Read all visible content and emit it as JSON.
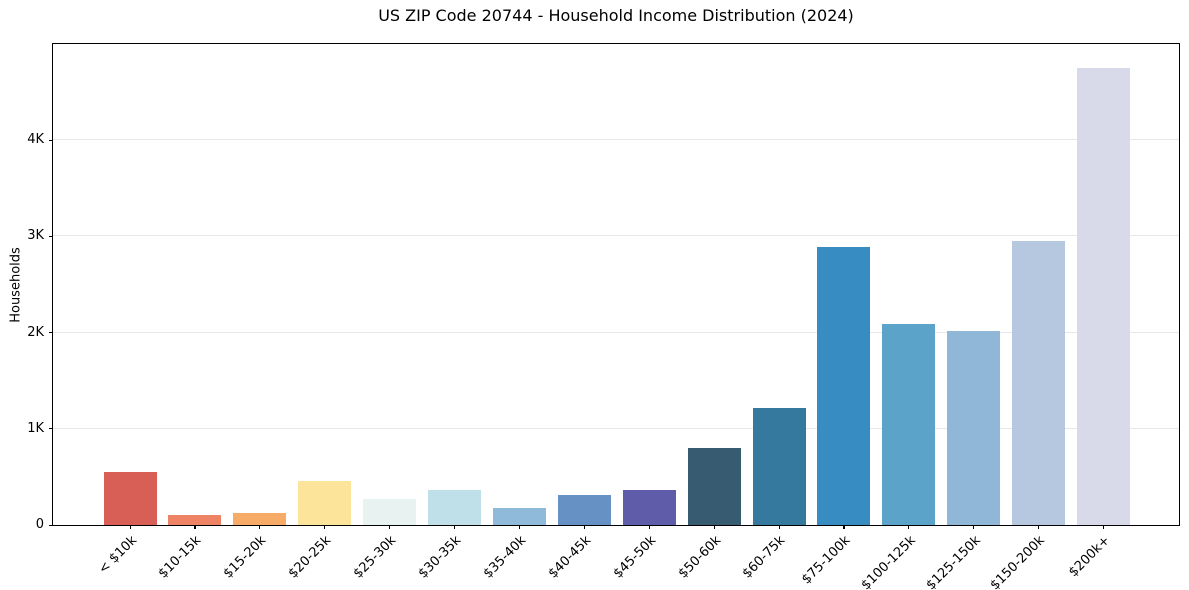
{
  "chart_data": {
    "type": "bar",
    "title": "US ZIP Code 20744 - Household Income Distribution (2024)",
    "xlabel": "",
    "ylabel": "Households",
    "categories": [
      "< $10k",
      "$10-15k",
      "$15-20k",
      "$20-25k",
      "$25-30k",
      "$30-35k",
      "$35-40k",
      "$40-45k",
      "$45-50k",
      "$50-60k",
      "$60-75k",
      "$75-100k",
      "$100-125k",
      "$125-150k",
      "$150-200k",
      "$200k+"
    ],
    "values": [
      550,
      100,
      130,
      460,
      270,
      360,
      180,
      315,
      360,
      800,
      1215,
      2890,
      2090,
      2020,
      2955,
      4755
    ],
    "bar_colors": [
      "#d85f55",
      "#ee8465",
      "#f6ab67",
      "#fce49a",
      "#e8f2f0",
      "#bfe0e9",
      "#8fbad9",
      "#6691c4",
      "#5f5caa",
      "#375c71",
      "#35799f",
      "#378dc2",
      "#5ba3c9",
      "#90b7d7",
      "#b6c8e0",
      "#d8dae9"
    ],
    "ylim": [
      0,
      5000
    ],
    "yticks": [
      {
        "label": "0",
        "value": 0
      },
      {
        "label": "1K",
        "value": 1000
      },
      {
        "label": "2K",
        "value": 2000
      },
      {
        "label": "3K",
        "value": 3000
      },
      {
        "label": "4K",
        "value": 4000
      }
    ],
    "grid": "horizontal",
    "legend_position": "none",
    "gridline_color": "#e7e7e7",
    "axis_color": "#000000",
    "text_color": "#000000",
    "background_color": "#ffffff"
  }
}
